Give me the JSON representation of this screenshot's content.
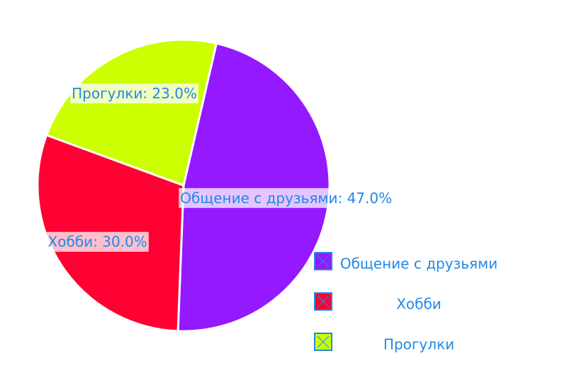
{
  "chart_data": {
    "type": "pie",
    "categories": [
      "Общение с друзьями",
      "Хобби",
      "Прогулки"
    ],
    "values": [
      47.0,
      30.0,
      23.0
    ],
    "value_labels": [
      "Общение с друзьями: 47.0%",
      "Хобби: 30.0%",
      "Прогулки: 23.0%"
    ],
    "colors": [
      "#9419ff",
      "#ff0033",
      "#ccff00"
    ],
    "legend": "bottom-right"
  }
}
